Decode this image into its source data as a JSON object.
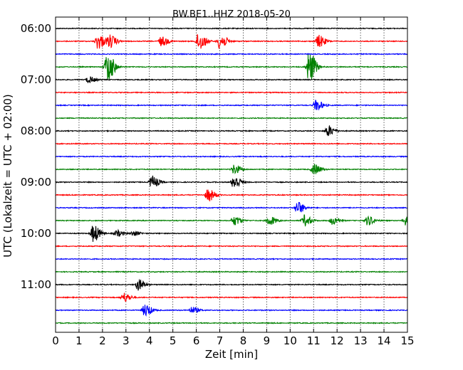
{
  "chart_data": {
    "type": "line",
    "title": "BW.BE1..HHZ 2018-05-20",
    "xlabel": "Zeit  [min]",
    "ylabel": "UTC (Lokalzeit = UTC + 02:00)",
    "xlim": [
      0,
      15
    ],
    "x_ticks": [
      0,
      1,
      2,
      3,
      4,
      5,
      6,
      7,
      8,
      9,
      10,
      11,
      12,
      13,
      14,
      15
    ],
    "x_tick_labels": [
      "0",
      "1",
      "2",
      "3",
      "4",
      "5",
      "6",
      "7",
      "8",
      "9",
      "10",
      "11",
      "12",
      "13",
      "14",
      "15"
    ],
    "y_tick_labels": [
      "06:00",
      "07:00",
      "08:00",
      "09:00",
      "10:00",
      "11:00"
    ],
    "grid": "vertical dotted at each minute",
    "trace_interval_min": 15,
    "trace_colors": [
      "#000000",
      "#ff0000",
      "#0000ff",
      "#008000"
    ],
    "traces": [
      {
        "start": "06:00",
        "events": []
      },
      {
        "start": "06:15",
        "events": [
          [
            1.8,
            0.5
          ],
          [
            2.3,
            0.4
          ],
          [
            4.5,
            0.3
          ],
          [
            6.1,
            0.6
          ],
          [
            7.0,
            0.5
          ],
          [
            11.2,
            0.4
          ]
        ]
      },
      {
        "start": "06:30",
        "events": []
      },
      {
        "start": "06:45",
        "events": [
          [
            2.2,
            1.0
          ],
          [
            10.8,
            1.0
          ]
        ]
      },
      {
        "start": "07:00",
        "events": [
          [
            1.4,
            0.2
          ]
        ]
      },
      {
        "start": "07:15",
        "events": []
      },
      {
        "start": "07:30",
        "events": [
          [
            11.1,
            0.35
          ]
        ]
      },
      {
        "start": "07:45",
        "events": []
      },
      {
        "start": "08:00",
        "events": [
          [
            11.6,
            0.35
          ]
        ]
      },
      {
        "start": "08:15",
        "events": []
      },
      {
        "start": "08:30",
        "events": []
      },
      {
        "start": "08:45",
        "events": [
          [
            7.6,
            0.3
          ],
          [
            11.0,
            0.35
          ]
        ]
      },
      {
        "start": "09:00",
        "events": [
          [
            4.1,
            0.4
          ],
          [
            7.6,
            0.45
          ]
        ]
      },
      {
        "start": "09:15",
        "events": [
          [
            6.5,
            0.4
          ]
        ]
      },
      {
        "start": "09:30",
        "events": [
          [
            10.3,
            0.4
          ]
        ]
      },
      {
        "start": "09:45",
        "events": [
          [
            7.6,
            0.3
          ],
          [
            9.1,
            0.3
          ],
          [
            10.6,
            0.35
          ],
          [
            11.8,
            0.25
          ],
          [
            13.3,
            0.3
          ],
          [
            14.9,
            0.3
          ]
        ]
      },
      {
        "start": "10:00",
        "events": [
          [
            1.6,
            0.55
          ],
          [
            2.6,
            0.2
          ],
          [
            3.3,
            0.15
          ]
        ]
      },
      {
        "start": "10:15",
        "events": []
      },
      {
        "start": "10:30",
        "events": []
      },
      {
        "start": "10:45",
        "events": []
      },
      {
        "start": "11:00",
        "events": [
          [
            3.5,
            0.35
          ]
        ]
      },
      {
        "start": "11:15",
        "events": [
          [
            2.9,
            0.3
          ]
        ]
      },
      {
        "start": "11:30",
        "events": [
          [
            3.8,
            0.4
          ],
          [
            5.8,
            0.2
          ]
        ]
      },
      {
        "start": "11:45",
        "events": []
      }
    ]
  }
}
